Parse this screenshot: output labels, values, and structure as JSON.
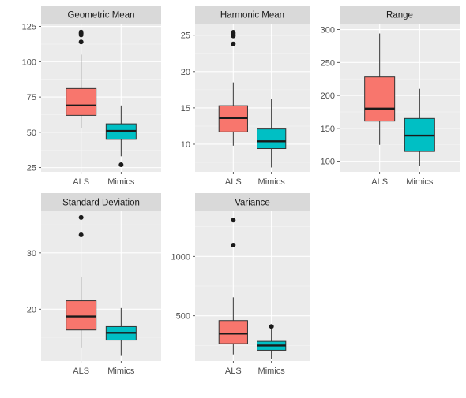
{
  "colors": {
    "panel_bg": "#EBEBEB",
    "strip_bg": "#D9D9D9",
    "grid_major": "#FFFFFF",
    "grid_minor": "#F5F5F5",
    "tick_text": "#4D4D4D",
    "strip_text": "#1A1A1A",
    "als_fill": "#F8766D",
    "mimics_fill": "#00BFC4",
    "box_line": "#333333"
  },
  "chart_data": [
    {
      "type": "boxplot",
      "title": "Geometric Mean",
      "categories": [
        "ALS",
        "Mimics"
      ],
      "ylim": [
        22,
        127
      ],
      "yticks": [
        25,
        50,
        75,
        100,
        125
      ],
      "boxes": [
        {
          "group": "ALS",
          "lower_whisker": 53,
          "q1": 62,
          "median": 69,
          "q3": 81,
          "upper_whisker": 105,
          "outliers": [
            114,
            119,
            120,
            121
          ]
        },
        {
          "group": "Mimics",
          "lower_whisker": 33,
          "q1": 45,
          "median": 51,
          "q3": 56,
          "upper_whisker": 69,
          "outliers": [
            27
          ]
        }
      ]
    },
    {
      "type": "boxplot",
      "title": "Harmonic Mean",
      "categories": [
        "ALS",
        "Mimics"
      ],
      "ylim": [
        6.2,
        26.6
      ],
      "yticks": [
        10,
        15,
        20,
        25
      ],
      "boxes": [
        {
          "group": "ALS",
          "lower_whisker": 9.8,
          "q1": 11.7,
          "median": 13.6,
          "q3": 15.3,
          "upper_whisker": 18.5,
          "outliers": [
            23.8,
            24.9,
            25.2,
            25.4
          ]
        },
        {
          "group": "Mimics",
          "lower_whisker": 6.8,
          "q1": 9.4,
          "median": 10.4,
          "q3": 12.1,
          "upper_whisker": 16.2,
          "outliers": []
        }
      ]
    },
    {
      "type": "boxplot",
      "title": "Range",
      "categories": [
        "ALS",
        "Mimics"
      ],
      "ylim": [
        84,
        309
      ],
      "yticks": [
        100,
        150,
        200,
        250,
        300
      ],
      "boxes": [
        {
          "group": "ALS",
          "lower_whisker": 125,
          "q1": 161,
          "median": 180,
          "q3": 228,
          "upper_whisker": 294,
          "outliers": []
        },
        {
          "group": "Mimics",
          "lower_whisker": 93,
          "q1": 115,
          "median": 139,
          "q3": 165,
          "upper_whisker": 210,
          "outliers": []
        }
      ]
    },
    {
      "type": "boxplot",
      "title": "Standard Deviation",
      "categories": [
        "ALS",
        "Mimics"
      ],
      "ylim": [
        10.8,
        37.4
      ],
      "yticks": [
        20,
        30
      ],
      "boxes": [
        {
          "group": "ALS",
          "lower_whisker": 13.2,
          "q1": 16.3,
          "median": 18.7,
          "q3": 21.5,
          "upper_whisker": 25.7,
          "outliers": [
            33.2,
            36.3
          ]
        },
        {
          "group": "Mimics",
          "lower_whisker": 11.7,
          "q1": 14.5,
          "median": 15.8,
          "q3": 16.9,
          "upper_whisker": 20.2,
          "outliers": []
        }
      ]
    },
    {
      "type": "boxplot",
      "title": "Variance",
      "categories": [
        "ALS",
        "Mimics"
      ],
      "ylim": [
        120,
        1380
      ],
      "yticks": [
        500,
        1000
      ],
      "boxes": [
        {
          "group": "ALS",
          "lower_whisker": 175,
          "q1": 265,
          "median": 350,
          "q3": 460,
          "upper_whisker": 655,
          "outliers": [
            1095,
            1305
          ]
        },
        {
          "group": "Mimics",
          "lower_whisker": 140,
          "q1": 210,
          "median": 250,
          "q3": 285,
          "upper_whisker": 400,
          "outliers": [
            410
          ]
        }
      ]
    }
  ]
}
